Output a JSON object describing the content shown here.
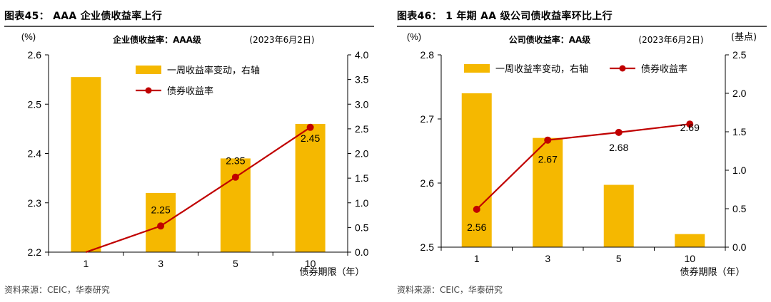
{
  "charts": [
    {
      "figure_title": "图表45： AAA 企业债收益率上行",
      "source": "资料来源：CEIC，华泰研究",
      "chart_title": "企业债收益率：AAA级",
      "date_label": "(2023年6月2日)",
      "left_unit": "(%)",
      "right_unit": "",
      "x_axis_label": "债券期限（年）",
      "bar_color": "#F5B800",
      "line_color": "#C00000"
    },
    {
      "figure_title": "图表46： 1 年期 AA 级公司债收益率环比上行",
      "source": "资料来源：CEIC，华泰研究",
      "chart_title": "公司债收益率：AA级",
      "date_label": "(2023年6月2日)",
      "left_unit": "(%)",
      "right_unit": "(基点)",
      "x_axis_label": "债券期限（年）",
      "bar_color": "#F5B800",
      "line_color": "#C00000"
    }
  ],
  "chart_data": [
    {
      "type": "bar",
      "categories": [
        "1",
        "3",
        "5",
        "10"
      ],
      "series": [
        {
          "name": "一周收益率变动，右轴",
          "type": "bar",
          "axis": "right",
          "values": [
            3.55,
            1.2,
            1.9,
            2.6
          ]
        },
        {
          "name": "债券收益率",
          "type": "line",
          "axis": "left",
          "values": [
            2.198,
            2.253,
            2.352,
            2.453
          ],
          "data_labels": [
            "",
            "2.25",
            "2.35",
            "2.45"
          ]
        }
      ],
      "ylim_left": [
        2.2,
        2.6
      ],
      "yticks_left": [
        "2.2",
        "2.3",
        "2.4",
        "2.5",
        "2.6"
      ],
      "ylim_right": [
        0,
        4
      ],
      "yticks_right": [
        "0.0",
        "0.5",
        "1.0",
        "1.5",
        "2.0",
        "2.5",
        "3.0",
        "3.5",
        "4.0"
      ],
      "legend_position": "top-center",
      "grid": false
    },
    {
      "type": "bar",
      "categories": [
        "1",
        "3",
        "5",
        "10"
      ],
      "series": [
        {
          "name": "一周收益率变动，右轴",
          "type": "bar",
          "axis": "right",
          "values": [
            2.0,
            1.42,
            0.81,
            0.17
          ]
        },
        {
          "name": "债券收益率",
          "type": "line",
          "axis": "left",
          "values": [
            2.559,
            2.667,
            2.679,
            2.692
          ],
          "data_labels": [
            "2.56",
            "2.67",
            "2.68",
            "2.69"
          ]
        }
      ],
      "ylim_left": [
        2.5,
        2.8
      ],
      "yticks_left": [
        "2.5",
        "2.6",
        "2.7",
        "2.8"
      ],
      "ylim_right": [
        0,
        2.5
      ],
      "yticks_right": [
        "0.0",
        "0.5",
        "1.0",
        "1.5",
        "2.0",
        "2.5"
      ],
      "legend_position": "top",
      "grid": false
    }
  ]
}
